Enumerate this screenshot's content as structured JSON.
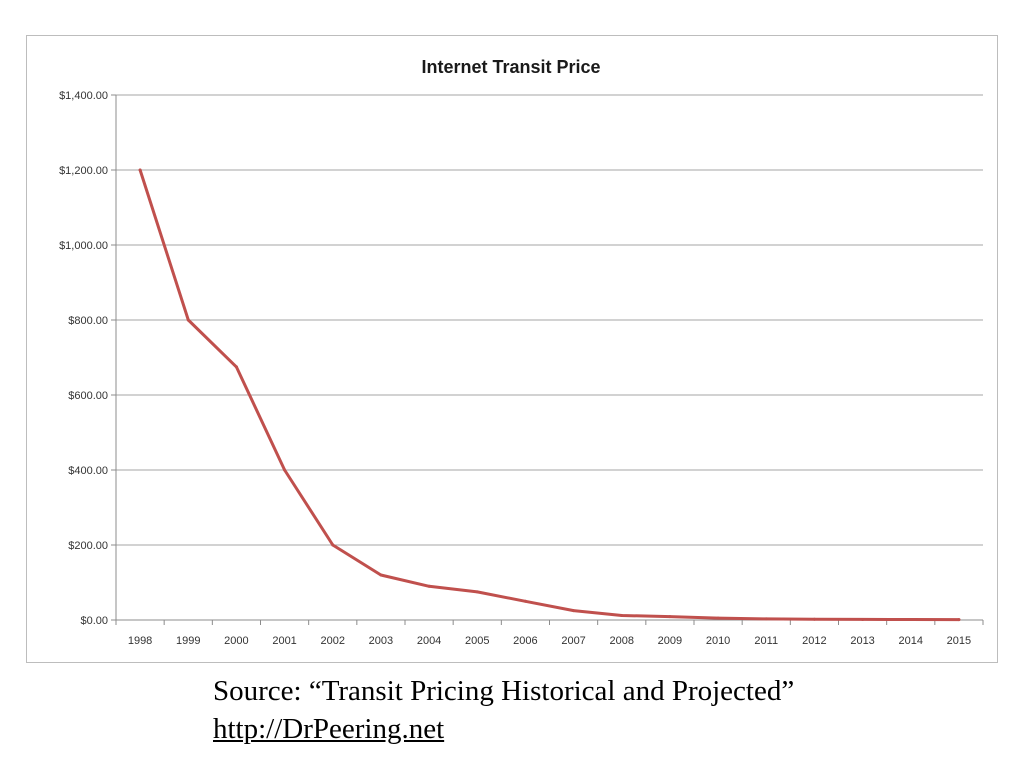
{
  "chart_data": {
    "type": "line",
    "title": "Internet Transit Price",
    "xlabel": "",
    "ylabel": "",
    "categories": [
      "1998",
      "1999",
      "2000",
      "2001",
      "2002",
      "2003",
      "2004",
      "2005",
      "2006",
      "2007",
      "2008",
      "2009",
      "2010",
      "2011",
      "2012",
      "2013",
      "2014",
      "2015"
    ],
    "series": [
      {
        "values": [
          1200,
          800,
          675,
          400,
          200,
          120,
          90,
          75,
          50,
          25,
          12,
          9,
          5,
          3,
          2,
          1.5,
          1.2,
          1.0
        ],
        "color": "#c0504d"
      }
    ],
    "yticks": [
      "$0.00",
      "$200.00",
      "$400.00",
      "$600.00",
      "$800.00",
      "$1,000.00",
      "$1,200.00",
      "$1,400.00"
    ],
    "ylim": [
      0,
      1400
    ],
    "grid": true,
    "legend": "none"
  },
  "source": {
    "text": "Source:  “Transit Pricing Historical and Projected”",
    "link": "http://DrPeering.net"
  }
}
